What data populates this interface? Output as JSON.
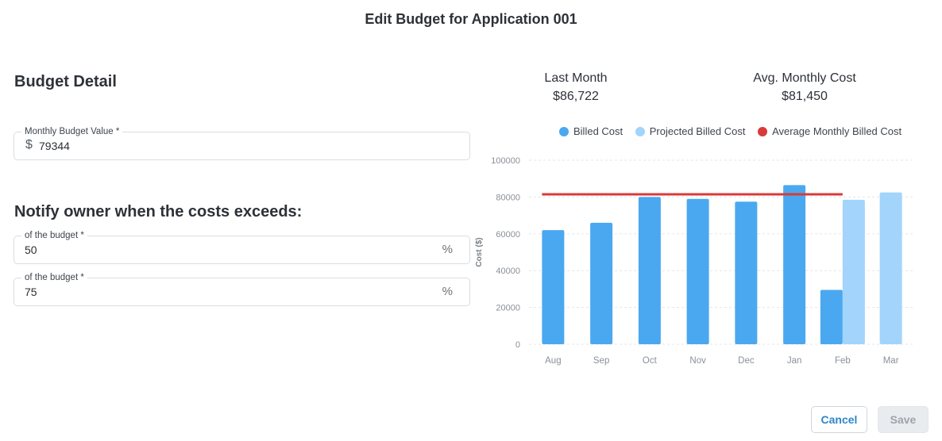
{
  "dialog": {
    "title": "Edit Budget for Application 001"
  },
  "budget": {
    "section_title": "Budget Detail",
    "monthly_label": "Monthly Budget Value *",
    "currency_symbol": "$",
    "monthly_value": "79344"
  },
  "notify": {
    "section_title": "Notify owner when the costs exceeds:",
    "thresholds": [
      {
        "label": "of the budget *",
        "value": "50",
        "unit": "%"
      },
      {
        "label": "of the budget *",
        "value": "75",
        "unit": "%"
      }
    ]
  },
  "stats": {
    "last_month_label": "Last Month",
    "last_month_value": "$86,722",
    "avg_label": "Avg. Monthly Cost",
    "avg_value": "$81,450"
  },
  "chart_data": {
    "type": "bar",
    "categories": [
      "Aug",
      "Sep",
      "Oct",
      "Nov",
      "Dec",
      "Jan",
      "Feb",
      "Mar"
    ],
    "series": [
      {
        "name": "Billed Cost",
        "color": "#4aa8f0",
        "values": [
          62000,
          66000,
          80000,
          79000,
          77500,
          86500,
          29500,
          null
        ]
      },
      {
        "name": "Projected Billed Cost",
        "color": "#a3d4fb",
        "values": [
          null,
          null,
          null,
          null,
          null,
          null,
          78500,
          82500
        ]
      }
    ],
    "average_line": {
      "name": "Average Monthly Billed Cost",
      "color": "#d93a3a",
      "value": 81450
    },
    "ylabel": "Cost ($)",
    "ylim": [
      0,
      100000
    ],
    "yticks": [
      "100000",
      "80000",
      "60000",
      "40000",
      "20000",
      "0"
    ],
    "grid": true,
    "legend_position": "top"
  },
  "actions": {
    "cancel_label": "Cancel",
    "save_label": "Save"
  }
}
